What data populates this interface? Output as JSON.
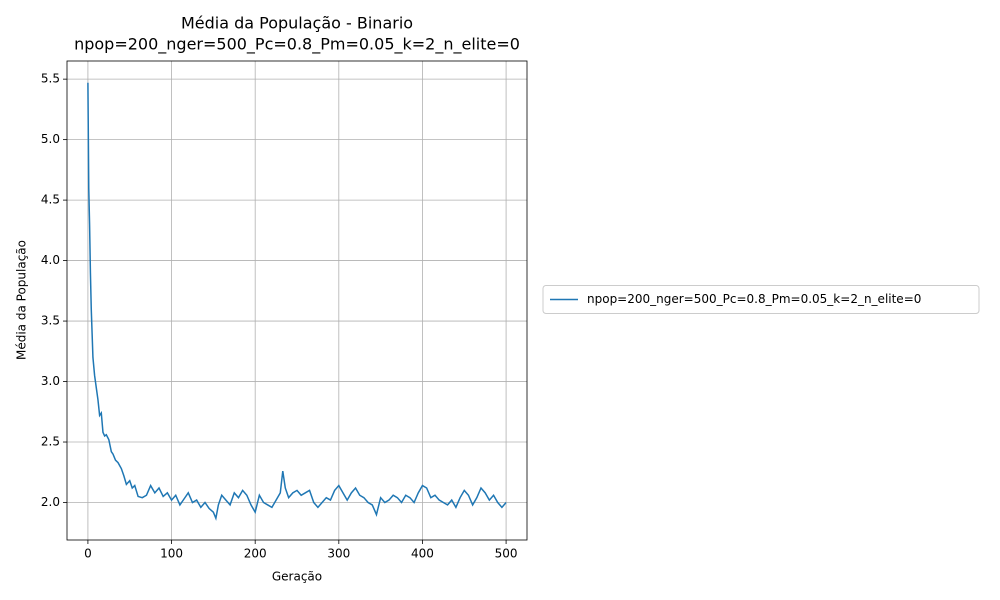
{
  "chart_data": {
    "type": "line",
    "title": "Média da População - Binario",
    "subtitle": "npop=200_nger=500_Pc=0.8_Pm=0.05_k=2_n_elite=0",
    "xlabel": "Geração",
    "ylabel": "Média da População",
    "x": [
      0,
      1,
      2,
      3,
      4,
      5,
      6,
      8,
      10,
      12,
      14,
      16,
      18,
      20,
      22,
      25,
      28,
      30,
      33,
      36,
      40,
      43,
      46,
      50,
      53,
      56,
      60,
      65,
      70,
      75,
      80,
      85,
      90,
      95,
      100,
      105,
      110,
      115,
      120,
      125,
      130,
      135,
      140,
      145,
      150,
      153,
      156,
      160,
      165,
      170,
      175,
      180,
      185,
      190,
      195,
      200,
      205,
      210,
      215,
      220,
      225,
      230,
      233,
      236,
      240,
      245,
      250,
      255,
      260,
      265,
      270,
      275,
      280,
      285,
      290,
      295,
      300,
      305,
      310,
      315,
      320,
      325,
      330,
      335,
      340,
      345,
      350,
      355,
      360,
      365,
      370,
      375,
      380,
      385,
      390,
      395,
      400,
      405,
      410,
      415,
      420,
      425,
      430,
      435,
      440,
      445,
      450,
      455,
      460,
      465,
      470,
      475,
      480,
      485,
      490,
      495,
      500
    ],
    "series": [
      {
        "name": "npop=200_nger=500_Pc=0.8_Pm=0.05_k=2_n_elite=0",
        "color": "#1f77b4",
        "values": [
          5.47,
          4.6,
          4.3,
          3.9,
          3.6,
          3.4,
          3.2,
          3.05,
          2.95,
          2.85,
          2.72,
          2.74,
          2.58,
          2.55,
          2.56,
          2.52,
          2.42,
          2.4,
          2.35,
          2.33,
          2.28,
          2.22,
          2.15,
          2.18,
          2.12,
          2.14,
          2.05,
          2.04,
          2.06,
          2.14,
          2.08,
          2.12,
          2.05,
          2.08,
          2.02,
          2.06,
          1.98,
          2.03,
          2.08,
          2.0,
          2.02,
          1.96,
          2.0,
          1.95,
          1.92,
          1.87,
          1.98,
          2.06,
          2.02,
          1.98,
          2.08,
          2.04,
          2.1,
          2.06,
          1.98,
          1.92,
          2.06,
          2.0,
          1.98,
          1.96,
          2.02,
          2.08,
          2.26,
          2.12,
          2.04,
          2.08,
          2.1,
          2.06,
          2.08,
          2.1,
          2.0,
          1.96,
          2.0,
          2.04,
          2.02,
          2.1,
          2.14,
          2.08,
          2.02,
          2.08,
          2.12,
          2.06,
          2.04,
          2.0,
          1.98,
          1.9,
          2.04,
          2.0,
          2.02,
          2.06,
          2.04,
          2.0,
          2.06,
          2.04,
          2.0,
          2.08,
          2.14,
          2.12,
          2.04,
          2.06,
          2.02,
          2.0,
          1.98,
          2.02,
          1.96,
          2.04,
          2.1,
          2.06,
          1.98,
          2.04,
          2.12,
          2.08,
          2.02,
          2.06,
          2.0,
          1.96,
          2.0
        ]
      }
    ],
    "xlim": [
      -25,
      525
    ],
    "xticks": [
      0,
      100,
      200,
      300,
      400,
      500
    ],
    "ylim": [
      1.69,
      5.65
    ],
    "yticks": [
      {
        "value": 2,
        "label": "2.0"
      },
      2.5,
      {
        "value": 3,
        "label": "3.0"
      },
      3.5,
      {
        "value": 4,
        "label": "4.0"
      },
      4.5,
      {
        "value": 5,
        "label": "5.0"
      },
      5.5
    ],
    "grid": true,
    "legend": "right"
  }
}
